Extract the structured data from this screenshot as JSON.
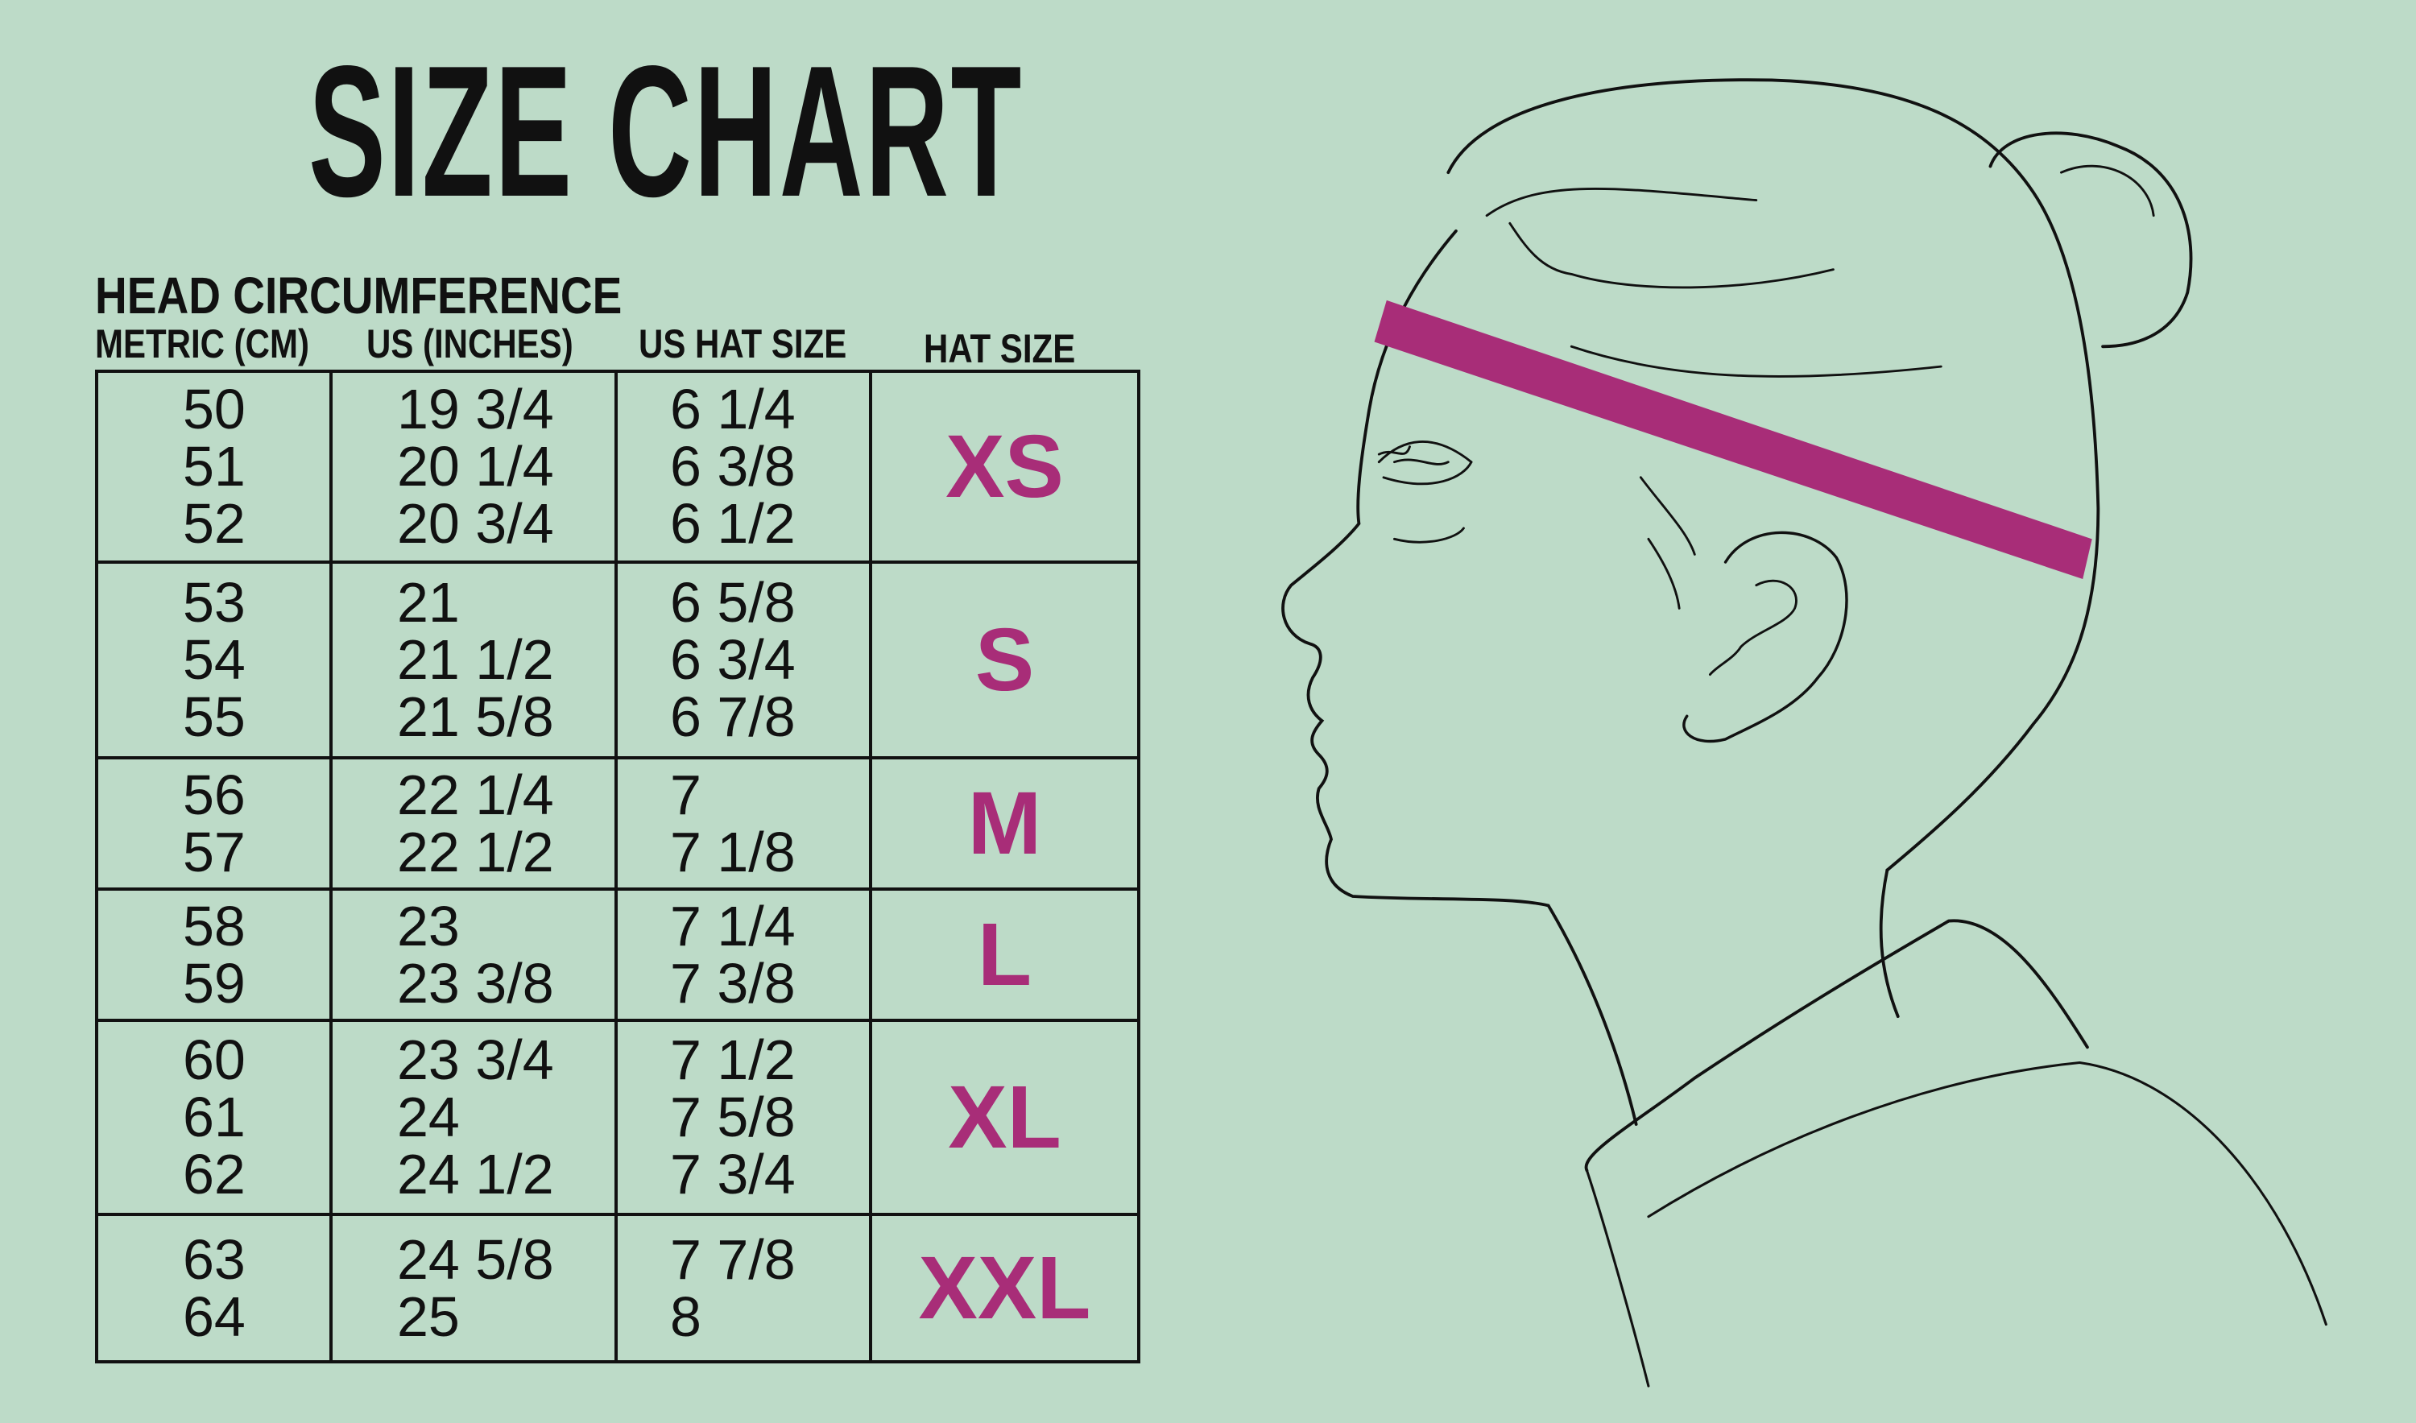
{
  "title": "SIZE CHART",
  "subtitle": "HEAD CIRCUMFERENCE",
  "columns": [
    "METRIC (CM)",
    "US (INCHES)",
    "US HAT SIZE",
    "HAT SIZE"
  ],
  "colors": {
    "background": "#bddbc8",
    "accent": "#a82d78",
    "text": "#111111"
  },
  "rows": [
    {
      "metric": [
        "50",
        "51",
        "52"
      ],
      "inches": [
        "19 3/4",
        "20 1/4",
        "20 3/4"
      ],
      "us_hat": [
        "6 1/4",
        "6 3/8",
        "6 1/2"
      ],
      "size": "XS"
    },
    {
      "metric": [
        "53",
        "54",
        "55"
      ],
      "inches": [
        "21",
        "21 1/2",
        "21 5/8"
      ],
      "us_hat": [
        "6 5/8",
        "6 3/4",
        "6 7/8"
      ],
      "size": "S"
    },
    {
      "metric": [
        "56",
        "57"
      ],
      "inches": [
        "22 1/4",
        "22 1/2"
      ],
      "us_hat": [
        "7",
        "7 1/8"
      ],
      "size": "M"
    },
    {
      "metric": [
        "58",
        "59"
      ],
      "inches": [
        "23",
        "23 3/8"
      ],
      "us_hat": [
        "7 1/4",
        "7 3/8"
      ],
      "size": "L"
    },
    {
      "metric": [
        "60",
        "61",
        "62"
      ],
      "inches": [
        "23 3/4",
        "24",
        "24 1/2"
      ],
      "us_hat": [
        "7 1/2",
        "7 5/8",
        "7 3/4"
      ],
      "size": "XL"
    },
    {
      "metric": [
        "63",
        "64"
      ],
      "inches": [
        "24 5/8",
        "25"
      ],
      "us_hat": [
        "7 7/8",
        "8"
      ],
      "size": "XXL"
    }
  ],
  "illustration": "woman-profile-with-measuring-band"
}
